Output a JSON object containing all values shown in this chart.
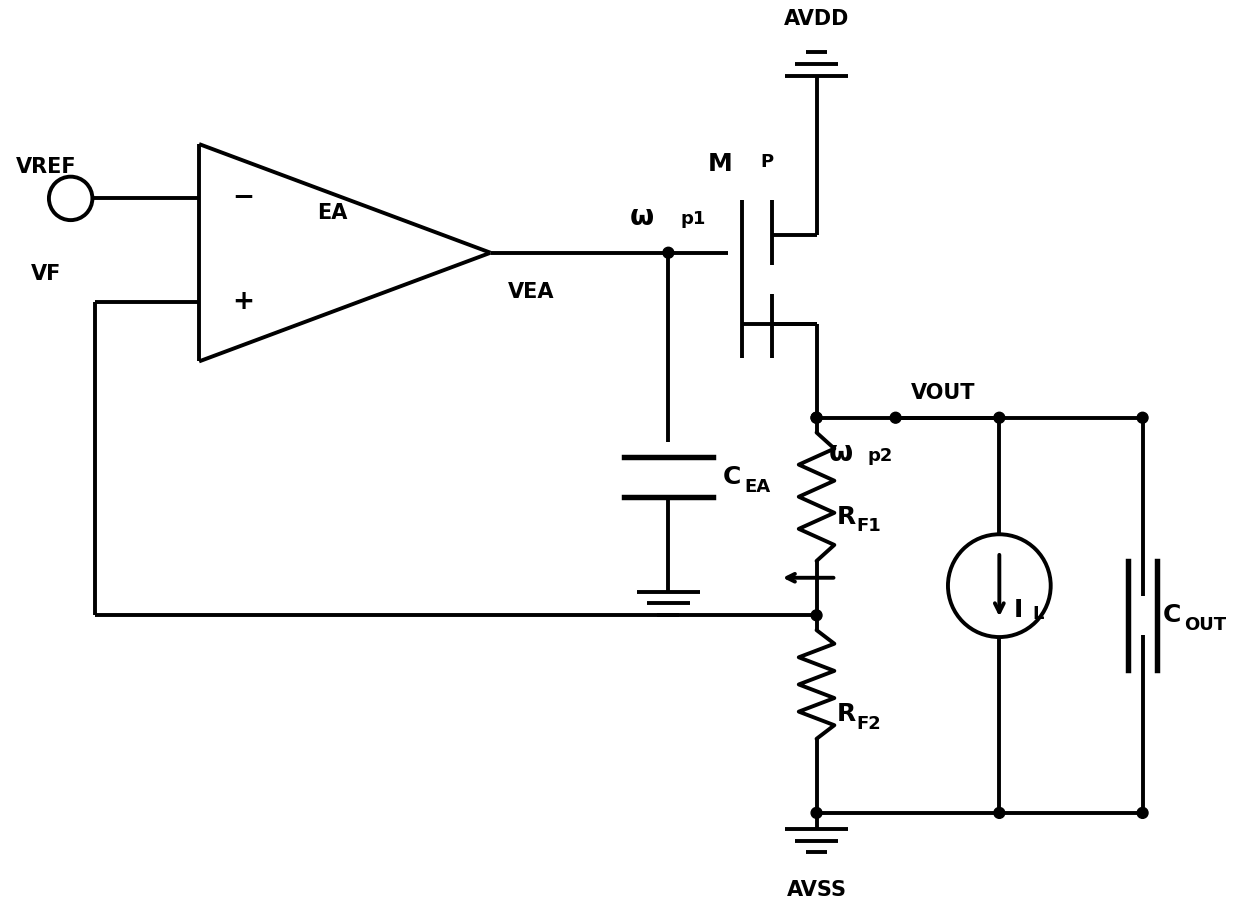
{
  "bg_color": "#ffffff",
  "line_color": "#000000",
  "lw": 2.8,
  "fig_width": 12.4,
  "fig_height": 9.07,
  "font_size": 15,
  "dot_r": 0.055,
  "labels": {
    "VREF": "VREF",
    "VF": "VF",
    "EA": "EA",
    "VEA": "VEA",
    "AVDD": "AVDD",
    "AVSS": "AVSS",
    "VOUT": "VOUT",
    "MP_main": "M",
    "MP_sub": "P",
    "wp1_main": "ω",
    "wp1_sub": "p1",
    "wp2_main": "ω",
    "wp2_sub": "p2",
    "CEA_main": "C",
    "CEA_sub": "EA",
    "RF1_main": "R",
    "RF1_sub": "F1",
    "RF2_main": "R",
    "RF2_sub": "F2",
    "IL_main": "I",
    "IL_sub": "L",
    "COUT_main": "C",
    "COUT_sub": "OUT"
  }
}
